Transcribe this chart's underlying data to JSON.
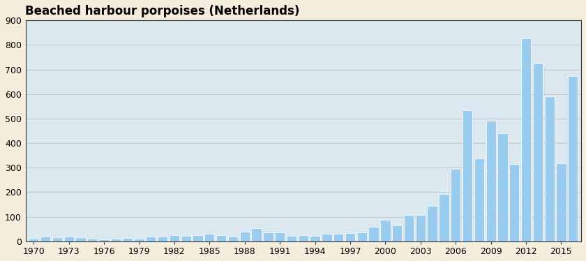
{
  "title": "Beached harbour porpoises (Netherlands)",
  "years": [
    1970,
    1971,
    1972,
    1973,
    1974,
    1975,
    1976,
    1977,
    1978,
    1979,
    1980,
    1981,
    1982,
    1983,
    1984,
    1985,
    1986,
    1987,
    1988,
    1989,
    1990,
    1991,
    1992,
    1993,
    1994,
    1995,
    1996,
    1997,
    1998,
    1999,
    2000,
    2001,
    2002,
    2003,
    2004,
    2005,
    2006,
    2007,
    2008,
    2009,
    2010,
    2011,
    2012,
    2013,
    2014,
    2015,
    2016
  ],
  "values": [
    12,
    18,
    15,
    18,
    17,
    10,
    8,
    12,
    14,
    12,
    18,
    20,
    25,
    22,
    25,
    30,
    25,
    20,
    40,
    52,
    35,
    35,
    22,
    25,
    22,
    30,
    30,
    32,
    35,
    60,
    88,
    65,
    108,
    108,
    145,
    193,
    295,
    533,
    338,
    492,
    440,
    315,
    828,
    725,
    590,
    318,
    672
  ],
  "bar_color": "#99ccee",
  "background_color": "#f5eedd",
  "plot_bg_color": "#dce8f0",
  "grid_color": "#c8c8c8",
  "spine_color": "#333333",
  "ylim": [
    0,
    900
  ],
  "yticks": [
    0,
    100,
    200,
    300,
    400,
    500,
    600,
    700,
    800,
    900
  ],
  "xtick_labels": [
    "1970",
    "1973",
    "1976",
    "1979",
    "1982",
    "1985",
    "1988",
    "1991",
    "1994",
    "1997",
    "2000",
    "2003",
    "2006",
    "2009",
    "2012",
    "2015"
  ],
  "xtick_positions": [
    1970,
    1973,
    1976,
    1979,
    1982,
    1985,
    1988,
    1991,
    1994,
    1997,
    2000,
    2003,
    2006,
    2009,
    2012,
    2015
  ],
  "title_fontsize": 12,
  "tick_fontsize": 9
}
